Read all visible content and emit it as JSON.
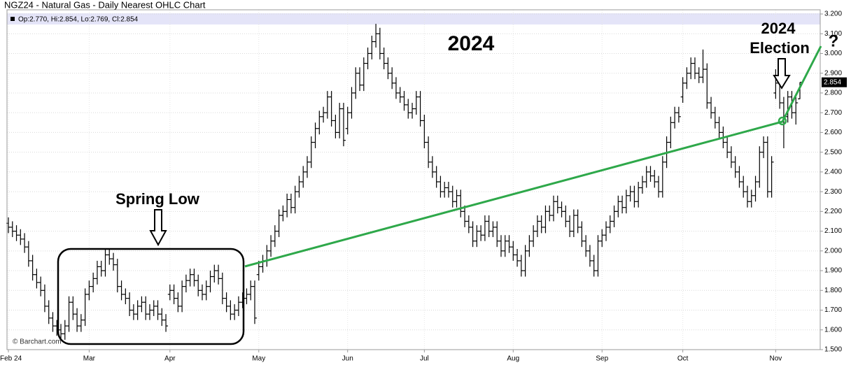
{
  "chart_data": {
    "type": "ohlc",
    "title": "NGZ24 - Natural Gas - Daily Nearest OHLC Chart",
    "legend_text": "Op:2.770, Hi:2.854, Lo:2.769, Cl:2.854",
    "source": "© Barchart.com",
    "annotations": [
      "Spring Low",
      "2024",
      "2024",
      "Election",
      "?"
    ],
    "color": "#000000",
    "grid": true,
    "ylim": [
      1.5,
      3.2
    ],
    "yticks": [
      {
        "value": 1.5,
        "label": "1.500"
      },
      {
        "value": 1.6,
        "label": "1.600"
      },
      {
        "value": 1.7,
        "label": "1.700"
      },
      {
        "value": 1.8,
        "label": "1.800"
      },
      {
        "value": 1.9,
        "label": "1.900"
      },
      {
        "value": 2.0,
        "label": "2.000"
      },
      {
        "value": 2.1,
        "label": "2.100"
      },
      {
        "value": 2.2,
        "label": "2.200"
      },
      {
        "value": 2.3,
        "label": "2.300"
      },
      {
        "value": 2.4,
        "label": "2.400"
      },
      {
        "value": 2.5,
        "label": "2.500"
      },
      {
        "value": 2.6,
        "label": "2.600"
      },
      {
        "value": 2.7,
        "label": "2.700"
      },
      {
        "value": 2.8,
        "label": "2.800"
      },
      {
        "value": 2.9,
        "label": "2.900"
      },
      {
        "value": 3.0,
        "label": "3.000"
      },
      {
        "value": 3.1,
        "label": "3.100"
      },
      {
        "value": 3.2,
        "label": "3.200"
      }
    ],
    "categories": [
      "Feb 24",
      null,
      null,
      null,
      null,
      null,
      null,
      null,
      null,
      null,
      null,
      null,
      null,
      null,
      null,
      null,
      null,
      null,
      null,
      null,
      "Mar",
      null,
      null,
      null,
      null,
      null,
      null,
      null,
      null,
      null,
      null,
      null,
      null,
      null,
      null,
      null,
      null,
      null,
      null,
      null,
      "Apr",
      null,
      null,
      null,
      null,
      null,
      null,
      null,
      null,
      null,
      null,
      null,
      null,
      null,
      null,
      null,
      null,
      null,
      null,
      null,
      null,
      null,
      "May",
      null,
      null,
      null,
      null,
      null,
      null,
      null,
      null,
      null,
      null,
      null,
      null,
      null,
      null,
      null,
      null,
      null,
      null,
      null,
      null,
      null,
      "Jun",
      null,
      null,
      null,
      null,
      null,
      null,
      null,
      null,
      null,
      null,
      null,
      null,
      null,
      null,
      null,
      null,
      null,
      null,
      "Jul",
      null,
      null,
      null,
      null,
      null,
      null,
      null,
      null,
      null,
      null,
      null,
      null,
      null,
      null,
      null,
      null,
      null,
      null,
      null,
      null,
      null,
      "Aug",
      null,
      null,
      null,
      null,
      null,
      null,
      null,
      null,
      null,
      null,
      null,
      null,
      null,
      null,
      null,
      null,
      null,
      null,
      null,
      null,
      null,
      "Sep",
      null,
      null,
      null,
      null,
      null,
      null,
      null,
      null,
      null,
      null,
      null,
      null,
      null,
      null,
      null,
      null,
      null,
      null,
      null,
      "Oct",
      null,
      null,
      null,
      null,
      null,
      null,
      null,
      null,
      null,
      null,
      null,
      null,
      null,
      null,
      null,
      null,
      null,
      null,
      null,
      null,
      null,
      null,
      "Nov",
      null,
      null,
      null,
      null,
      null,
      null
    ],
    "open": [
      2.14,
      2.12,
      2.1,
      2.08,
      2.06,
      2.02,
      1.95,
      1.88,
      1.84,
      1.8,
      1.72,
      1.66,
      1.62,
      1.6,
      1.58,
      1.62,
      1.74,
      1.68,
      1.62,
      1.65,
      1.78,
      1.82,
      1.86,
      1.92,
      1.9,
      1.98,
      1.96,
      1.93,
      1.82,
      1.78,
      1.76,
      1.7,
      1.68,
      1.72,
      1.74,
      1.68,
      1.7,
      1.72,
      1.68,
      1.65,
      1.78,
      1.8,
      1.76,
      1.72,
      1.82,
      1.85,
      1.88,
      1.85,
      1.8,
      1.78,
      1.82,
      1.87,
      1.9,
      1.86,
      1.76,
      1.72,
      1.68,
      1.7,
      1.74,
      1.76,
      1.78,
      1.82,
      1.88,
      1.92,
      1.95,
      2.0,
      2.05,
      2.1,
      2.18,
      2.2,
      2.26,
      2.22,
      2.3,
      2.35,
      2.4,
      2.45,
      2.55,
      2.62,
      2.68,
      2.7,
      2.78,
      2.66,
      2.6,
      2.72,
      2.62,
      2.7,
      2.8,
      2.9,
      2.84,
      2.95,
      3.0,
      3.06,
      3.1,
      3.0,
      2.95,
      2.9,
      2.85,
      2.8,
      2.78,
      2.74,
      2.7,
      2.72,
      2.78,
      2.66,
      2.55,
      2.45,
      2.4,
      2.35,
      2.3,
      2.32,
      2.3,
      2.25,
      2.28,
      2.2,
      2.15,
      2.12,
      2.05,
      2.1,
      2.08,
      2.15,
      2.1,
      2.12,
      2.05,
      2.0,
      2.05,
      2.02,
      1.98,
      1.95,
      1.9,
      2.0,
      2.05,
      2.1,
      2.15,
      2.12,
      2.2,
      2.18,
      2.25,
      2.22,
      2.2,
      2.15,
      2.1,
      2.18,
      2.12,
      2.05,
      2.0,
      1.95,
      1.9,
      2.05,
      2.08,
      2.12,
      2.15,
      2.2,
      2.25,
      2.22,
      2.28,
      2.3,
      2.25,
      2.32,
      2.35,
      2.4,
      2.38,
      2.35,
      2.3,
      2.45,
      2.55,
      2.65,
      2.7,
      2.78,
      2.85,
      2.9,
      2.95,
      2.9,
      2.88,
      2.92,
      2.75,
      2.7,
      2.65,
      2.6,
      2.55,
      2.5,
      2.45,
      2.4,
      2.35,
      2.3,
      2.25,
      2.28,
      2.35,
      2.5,
      2.55,
      2.3,
      2.8,
      2.85,
      2.75,
      2.68,
      2.78,
      2.7,
      2.77
    ],
    "high": [
      2.17,
      2.15,
      2.13,
      2.11,
      2.09,
      2.05,
      1.98,
      1.91,
      1.87,
      1.83,
      1.75,
      1.69,
      1.65,
      1.63,
      1.65,
      1.77,
      1.77,
      1.71,
      1.68,
      1.81,
      1.85,
      1.89,
      1.95,
      1.95,
      2.01,
      2.01,
      1.99,
      1.96,
      1.85,
      1.81,
      1.79,
      1.73,
      1.75,
      1.77,
      1.77,
      1.73,
      1.75,
      1.75,
      1.71,
      1.68,
      1.83,
      1.83,
      1.79,
      1.85,
      1.88,
      1.91,
      1.91,
      1.88,
      1.83,
      1.85,
      1.9,
      1.93,
      1.93,
      1.89,
      1.79,
      1.75,
      1.73,
      1.77,
      1.79,
      1.81,
      1.85,
      1.85,
      1.95,
      1.98,
      2.03,
      2.08,
      2.13,
      2.21,
      2.23,
      2.29,
      2.29,
      2.33,
      2.38,
      2.43,
      2.48,
      2.58,
      2.65,
      2.71,
      2.73,
      2.81,
      2.81,
      2.69,
      2.75,
      2.75,
      2.73,
      2.83,
      2.93,
      2.93,
      2.98,
      3.03,
      3.09,
      3.15,
      3.13,
      3.03,
      2.98,
      2.93,
      2.88,
      2.83,
      2.81,
      2.77,
      2.75,
      2.81,
      2.81,
      2.69,
      2.58,
      2.48,
      2.43,
      2.38,
      2.35,
      2.35,
      2.33,
      2.31,
      2.31,
      2.23,
      2.18,
      2.15,
      2.13,
      2.13,
      2.18,
      2.18,
      2.15,
      2.15,
      2.08,
      2.08,
      2.08,
      2.05,
      2.01,
      1.98,
      2.03,
      2.08,
      2.13,
      2.18,
      2.18,
      2.23,
      2.23,
      2.28,
      2.28,
      2.25,
      2.23,
      2.18,
      2.21,
      2.21,
      2.15,
      2.08,
      2.03,
      1.98,
      2.08,
      2.11,
      2.15,
      2.18,
      2.23,
      2.28,
      2.28,
      2.31,
      2.33,
      2.33,
      2.35,
      2.38,
      2.43,
      2.43,
      2.41,
      2.38,
      2.48,
      2.58,
      2.68,
      2.73,
      2.73,
      2.88,
      2.93,
      2.98,
      2.98,
      2.93,
      3.02,
      2.95,
      2.78,
      2.73,
      2.68,
      2.63,
      2.58,
      2.53,
      2.48,
      2.43,
      2.38,
      2.33,
      2.31,
      2.38,
      2.53,
      2.58,
      2.58,
      2.48,
      2.92,
      2.88,
      2.78,
      2.81,
      2.81,
      2.78,
      2.854
    ],
    "low": [
      2.09,
      2.07,
      2.05,
      2.03,
      1.99,
      1.92,
      1.85,
      1.81,
      1.77,
      1.69,
      1.63,
      1.59,
      1.57,
      1.55,
      1.55,
      1.59,
      1.65,
      1.59,
      1.59,
      1.62,
      1.75,
      1.79,
      1.83,
      1.87,
      1.87,
      1.93,
      1.9,
      1.79,
      1.75,
      1.73,
      1.67,
      1.65,
      1.65,
      1.69,
      1.65,
      1.65,
      1.67,
      1.65,
      1.62,
      1.59,
      1.75,
      1.73,
      1.69,
      1.69,
      1.79,
      1.82,
      1.82,
      1.77,
      1.75,
      1.75,
      1.79,
      1.84,
      1.83,
      1.73,
      1.69,
      1.65,
      1.65,
      1.67,
      1.71,
      1.73,
      1.75,
      1.63,
      1.85,
      1.89,
      1.92,
      1.97,
      2.02,
      2.07,
      2.15,
      2.17,
      2.19,
      2.19,
      2.27,
      2.32,
      2.37,
      2.42,
      2.52,
      2.59,
      2.65,
      2.67,
      2.63,
      2.57,
      2.57,
      2.53,
      2.59,
      2.67,
      2.77,
      2.81,
      2.81,
      2.92,
      2.97,
      3.03,
      2.97,
      2.92,
      2.87,
      2.82,
      2.77,
      2.75,
      2.71,
      2.67,
      2.67,
      2.69,
      2.63,
      2.52,
      2.42,
      2.37,
      2.32,
      2.27,
      2.27,
      2.27,
      2.22,
      2.22,
      2.17,
      2.12,
      2.09,
      2.02,
      2.02,
      2.05,
      2.05,
      2.07,
      2.07,
      2.02,
      1.97,
      1.97,
      1.99,
      1.95,
      1.92,
      1.87,
      1.87,
      1.97,
      2.02,
      2.07,
      2.09,
      2.09,
      2.15,
      2.15,
      2.19,
      2.17,
      2.12,
      2.07,
      2.07,
      2.09,
      2.02,
      1.97,
      1.92,
      1.87,
      1.87,
      2.02,
      2.05,
      2.09,
      2.12,
      2.17,
      2.19,
      2.19,
      2.25,
      2.22,
      2.22,
      2.29,
      2.32,
      2.35,
      2.32,
      2.27,
      2.27,
      2.42,
      2.52,
      2.62,
      2.65,
      2.75,
      2.82,
      2.87,
      2.87,
      2.85,
      2.85,
      2.72,
      2.67,
      2.62,
      2.57,
      2.52,
      2.47,
      2.42,
      2.37,
      2.32,
      2.27,
      2.22,
      2.22,
      2.25,
      2.32,
      2.47,
      2.27,
      2.27,
      2.77,
      2.72,
      2.52,
      2.65,
      2.67,
      2.64,
      2.769
    ],
    "close": [
      2.12,
      2.1,
      2.08,
      2.06,
      2.02,
      1.95,
      1.88,
      1.84,
      1.8,
      1.72,
      1.66,
      1.62,
      1.6,
      1.58,
      1.62,
      1.74,
      1.68,
      1.62,
      1.65,
      1.78,
      1.82,
      1.86,
      1.92,
      1.9,
      1.98,
      1.96,
      1.93,
      1.82,
      1.78,
      1.76,
      1.7,
      1.68,
      1.72,
      1.74,
      1.68,
      1.7,
      1.72,
      1.68,
      1.65,
      1.62,
      1.8,
      1.76,
      1.72,
      1.82,
      1.85,
      1.88,
      1.85,
      1.8,
      1.78,
      1.82,
      1.87,
      1.9,
      1.86,
      1.76,
      1.72,
      1.68,
      1.7,
      1.74,
      1.76,
      1.78,
      1.82,
      1.66,
      1.92,
      1.95,
      2.0,
      2.05,
      2.1,
      2.18,
      2.2,
      2.26,
      2.22,
      2.3,
      2.35,
      2.4,
      2.45,
      2.55,
      2.62,
      2.68,
      2.7,
      2.78,
      2.66,
      2.6,
      2.72,
      2.56,
      2.7,
      2.8,
      2.9,
      2.84,
      2.95,
      3.0,
      3.06,
      3.1,
      3.0,
      2.95,
      2.9,
      2.85,
      2.8,
      2.78,
      2.74,
      2.7,
      2.72,
      2.78,
      2.66,
      2.55,
      2.45,
      2.4,
      2.35,
      2.3,
      2.32,
      2.3,
      2.25,
      2.28,
      2.2,
      2.15,
      2.12,
      2.05,
      2.1,
      2.08,
      2.15,
      2.1,
      2.12,
      2.05,
      2.0,
      2.05,
      2.02,
      1.98,
      1.95,
      1.9,
      2.0,
      2.05,
      2.1,
      2.15,
      2.12,
      2.2,
      2.18,
      2.25,
      2.22,
      2.2,
      2.15,
      2.1,
      2.18,
      2.12,
      2.05,
      2.0,
      1.95,
      1.9,
      2.05,
      2.08,
      2.12,
      2.15,
      2.2,
      2.25,
      2.22,
      2.28,
      2.3,
      2.25,
      2.32,
      2.35,
      2.4,
      2.38,
      2.35,
      2.3,
      2.45,
      2.55,
      2.65,
      2.7,
      2.68,
      2.85,
      2.9,
      2.95,
      2.9,
      2.88,
      2.92,
      2.75,
      2.7,
      2.65,
      2.6,
      2.55,
      2.5,
      2.45,
      2.4,
      2.35,
      2.3,
      2.25,
      2.28,
      2.35,
      2.5,
      2.55,
      2.3,
      2.45,
      2.85,
      2.75,
      2.68,
      2.78,
      2.7,
      2.75,
      2.854
    ]
  }
}
